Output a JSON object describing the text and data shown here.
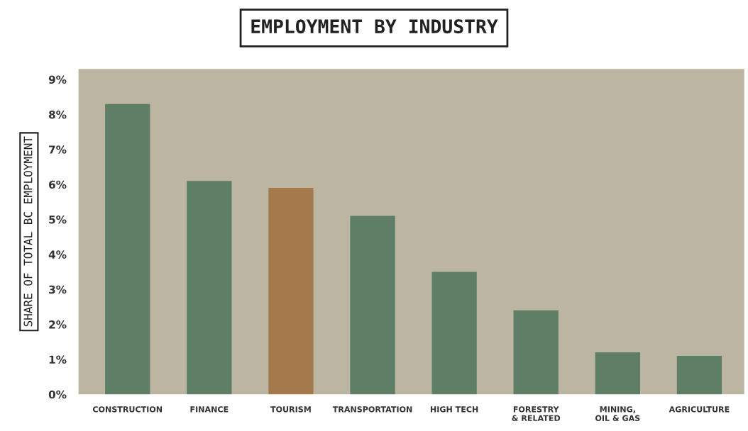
{
  "chart_data": {
    "type": "bar",
    "title": "EMPLOYMENT BY INDUSTRY",
    "ylabel": "SHARE OF TOTAL BC EMPLOYMENT",
    "categories": [
      "CONSTRUCTION",
      "FINANCE",
      "TOURISM",
      "TRANSPORTATION",
      "HIGH TECH",
      "FORESTRY\n& RELATED",
      "MINING,\nOIL & GAS",
      "AGRICULTURE"
    ],
    "values": [
      8.3,
      6.1,
      5.9,
      5.1,
      3.5,
      2.4,
      1.2,
      1.1
    ],
    "colors": [
      "#5f7e66",
      "#5f7e66",
      "#a47a4c",
      "#5f7e66",
      "#5f7e66",
      "#5f7e66",
      "#5f7e66",
      "#5f7e66"
    ],
    "ylim": [
      0,
      9.3
    ],
    "yticks": [
      {
        "value": 0,
        "label": "0%"
      },
      {
        "value": 1,
        "label": "1%"
      },
      {
        "value": 2,
        "label": "2%"
      },
      {
        "value": 3,
        "label": "3%"
      },
      {
        "value": 4,
        "label": "4%"
      },
      {
        "value": 5,
        "label": "5%"
      },
      {
        "value": 6,
        "label": "6%"
      },
      {
        "value": 7,
        "label": "7%"
      },
      {
        "value": 8,
        "label": "8%"
      },
      {
        "value": 9,
        "label": "9%"
      }
    ],
    "grid": false,
    "legend": false
  }
}
